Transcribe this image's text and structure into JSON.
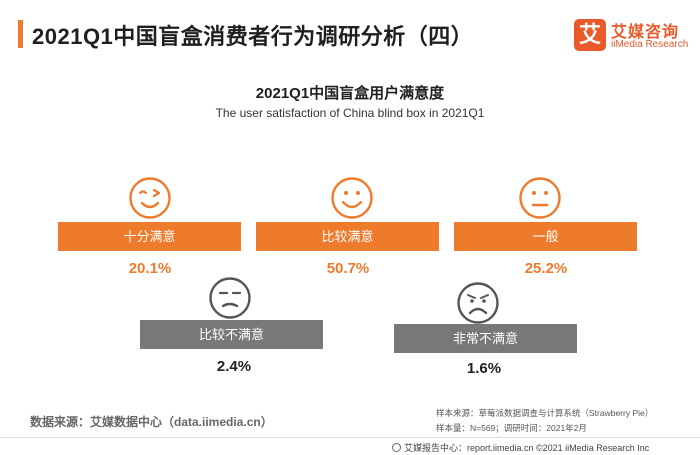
{
  "page": {
    "title": "2021Q1中国盲盒消费者行为调研分析（四）"
  },
  "logo": {
    "mark": "艾",
    "name_cn": "艾媒咨询",
    "name_en": "iiMedia Research"
  },
  "chart_data": {
    "type": "bar",
    "title": "2021Q1中国盲盒用户满意度",
    "subtitle": "The user satisfaction of China blind box in 2021Q1",
    "categories": [
      "十分满意",
      "比较满意",
      "一般",
      "比较不满意",
      "非常不满意"
    ],
    "values": [
      20.1,
      50.7,
      25.2,
      2.4,
      1.6
    ],
    "value_labels": [
      "20.1%",
      "50.7%",
      "25.2%",
      "2.4%",
      "1.6%"
    ],
    "unit": "%",
    "icons": [
      "winking-face-icon",
      "smiling-face-icon",
      "neutral-face-icon",
      "unamused-face-icon",
      "frowning-face-icon"
    ],
    "colors": {
      "positive": "#ee7a2c",
      "negative": "#787878",
      "icon": "#ee7a2c",
      "icon_negative": "#555555"
    }
  },
  "source": {
    "text": "数据来源：艾媒数据中心（data.iimedia.cn）"
  },
  "notes": {
    "sample_source": "样本来源：草莓派数据调查与计算系统（Strawberry Pie）",
    "sample_size": "样本量：N=569；调研时间：2021年2月"
  },
  "footer": {
    "text": "艾媒报告中心：report.iimedia.cn  ©2021  iiMedia Research  Inc"
  }
}
